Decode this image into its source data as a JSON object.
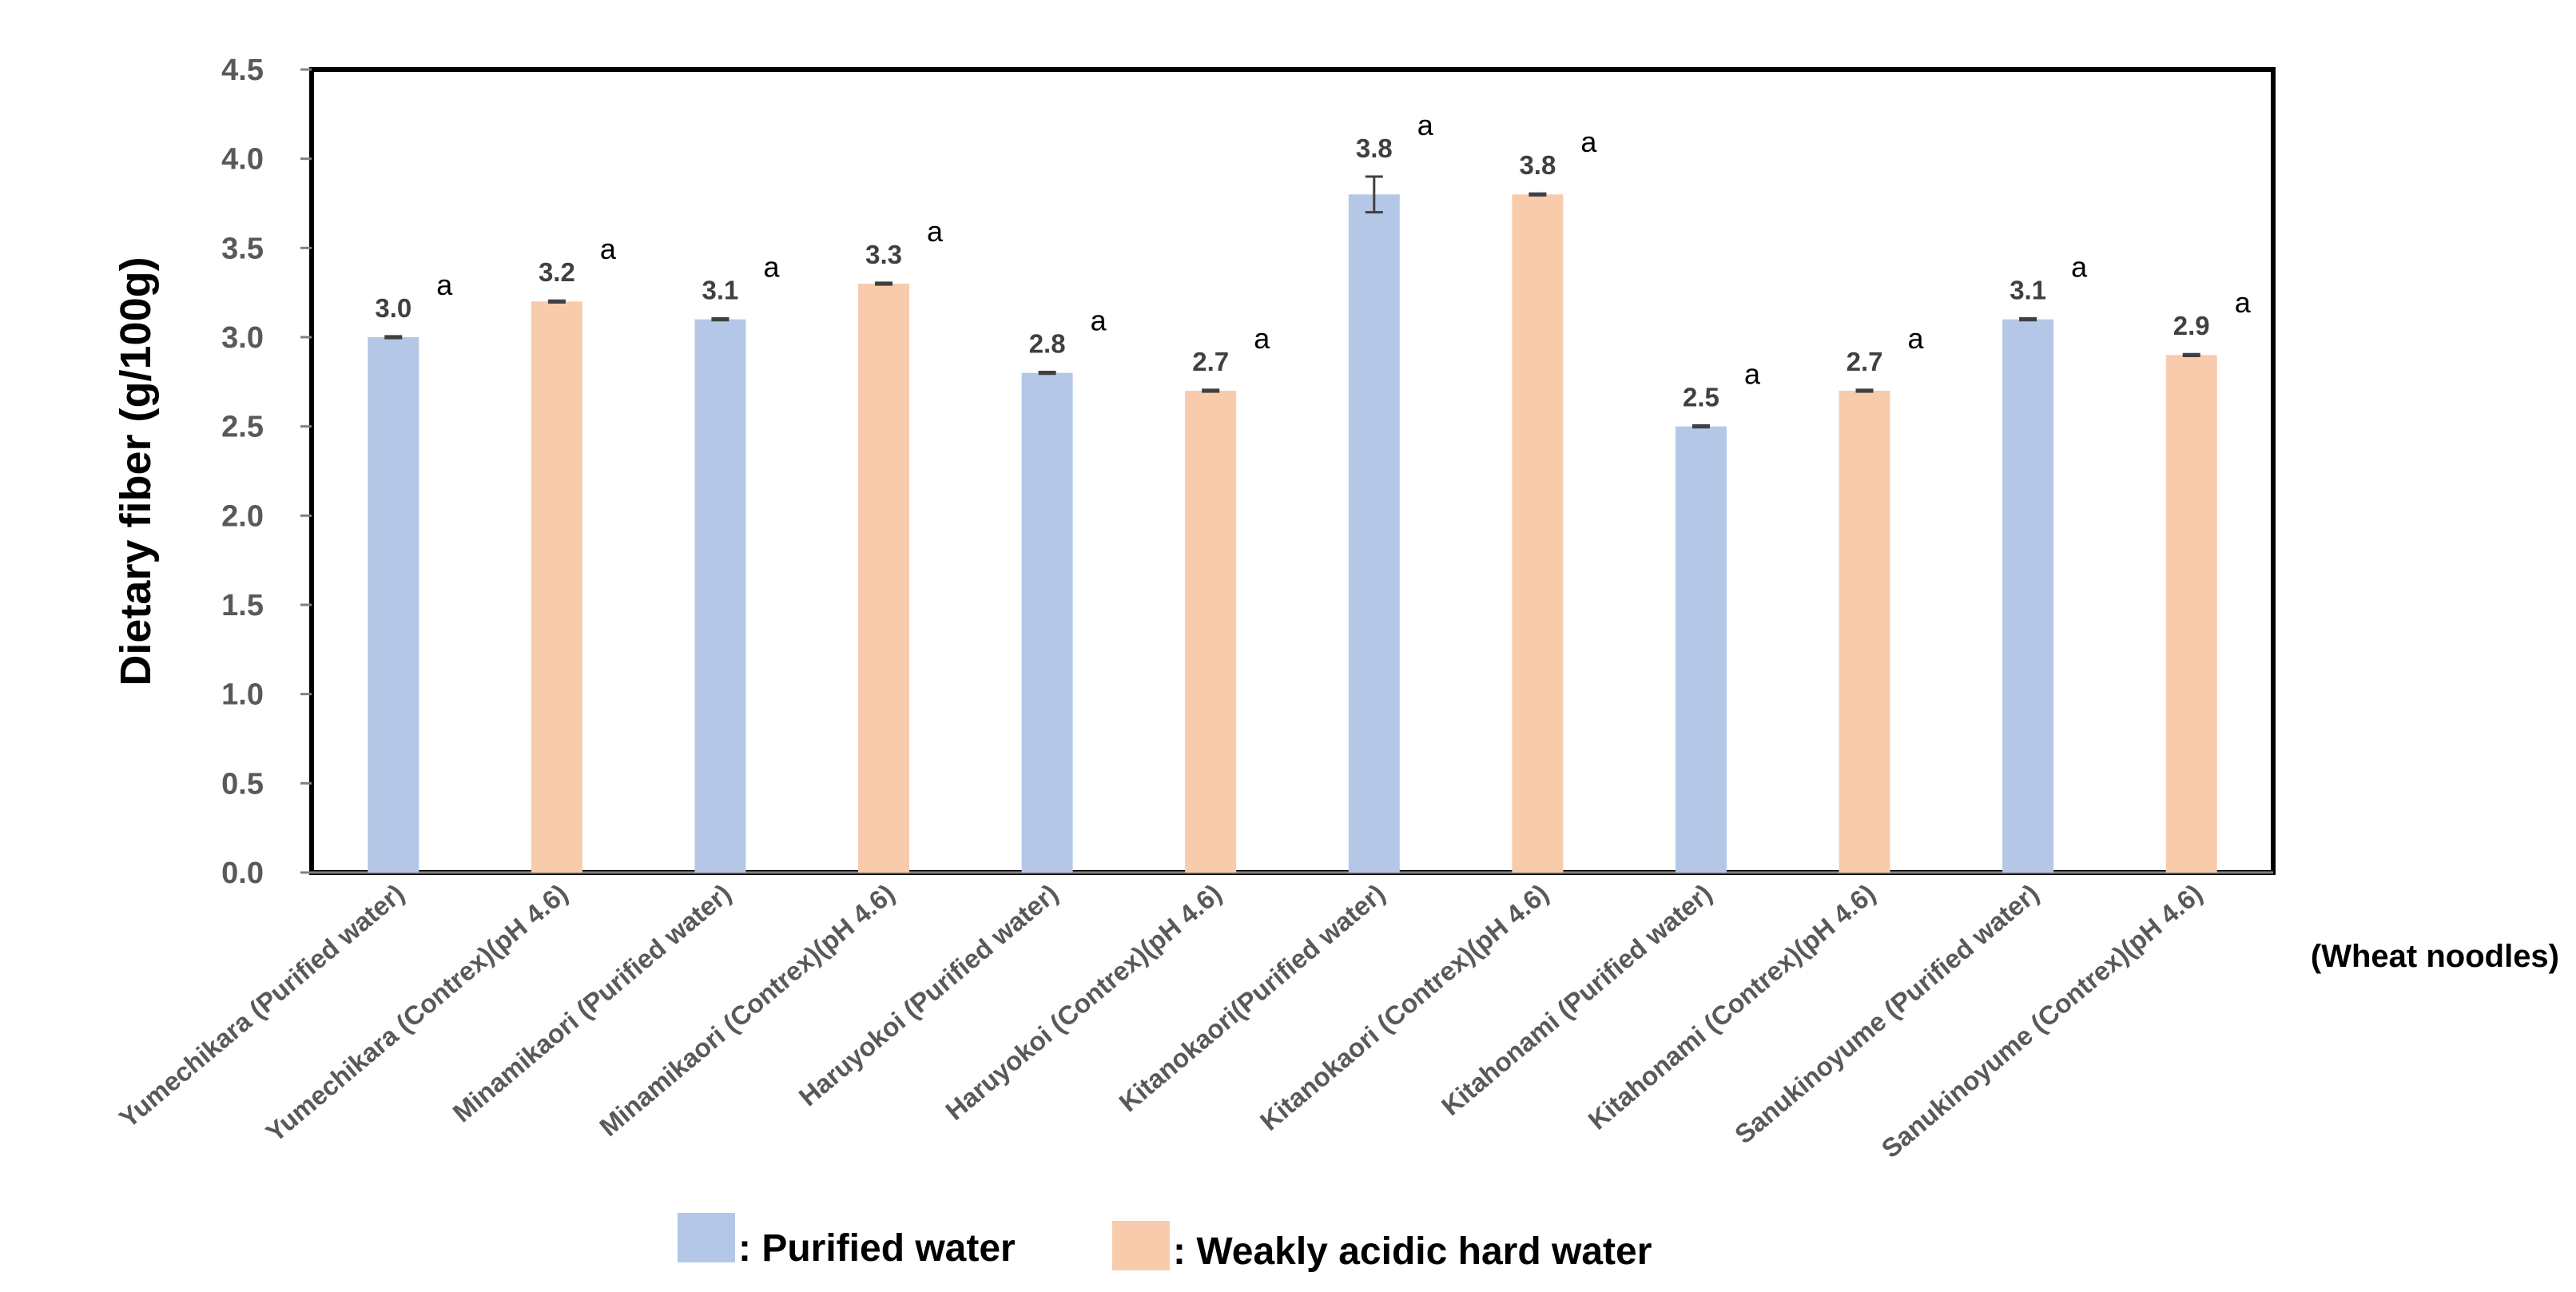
{
  "chart_data": {
    "type": "bar",
    "title": "",
    "xlabel": "",
    "ylabel": "Dietary fiber (g/100g)",
    "x_note": "(Wheat noodles)",
    "ylim": [
      0,
      4.5
    ],
    "yticks": [
      "0.0",
      "0.5",
      "1.0",
      "1.5",
      "2.0",
      "2.5",
      "3.0",
      "3.5",
      "4.0",
      "4.5"
    ],
    "categories": [
      "Yumechikara (Purified water)",
      "Yumechikara  (Contrex)(pH 4.6)",
      "Minamikaori (Purified water)",
      "Minamikaori  (Contrex)(pH 4.6)",
      "Haruyokoi (Purified water)",
      "Haruyokoi (Contrex)(pH 4.6)",
      "Kitanokaori(Purified water)",
      "Kitanokaori (Contrex)(pH 4.6)",
      "Kitahonami (Purified water)",
      "Kitahonami (Contrex)(pH 4.6)",
      "Sanukinoyume (Purified water)",
      "Sanukinoyume (Contrex)(pH 4.6)"
    ],
    "values": [
      3.0,
      3.2,
      3.1,
      3.3,
      2.8,
      2.7,
      3.8,
      3.8,
      2.5,
      2.7,
      3.1,
      2.9
    ],
    "value_labels": [
      "3.0",
      "3.2",
      "3.1",
      "3.3",
      "2.8",
      "2.7",
      "3.8",
      "3.8",
      "2.5",
      "2.7",
      "3.1",
      "2.9"
    ],
    "errors": [
      0.005,
      0.005,
      0.005,
      0.005,
      0.005,
      0.005,
      0.1,
      0.005,
      0.005,
      0.005,
      0.005,
      0.005
    ],
    "significance": [
      "a",
      "a",
      "a",
      "a",
      "a",
      "a",
      "a",
      "a",
      "a",
      "a",
      "a",
      "a"
    ],
    "bar_group": [
      0,
      1,
      0,
      1,
      0,
      1,
      0,
      1,
      0,
      1,
      0,
      1
    ],
    "series": [
      {
        "name": ": Purified water",
        "color": "#b4c7e7"
      },
      {
        "name": ": Weakly acidic hard water",
        "color": "#f8cbad"
      }
    ],
    "legend_position": "bottom",
    "grid": false
  }
}
